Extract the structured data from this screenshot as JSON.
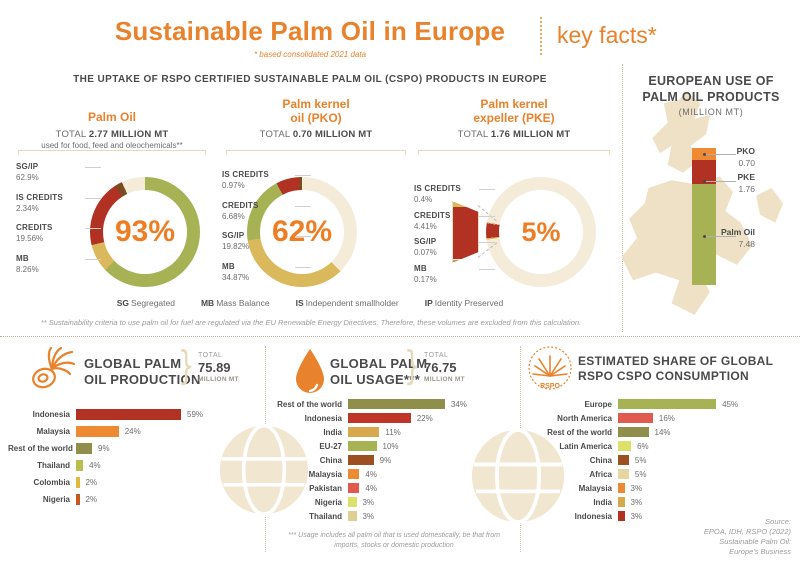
{
  "header": {
    "title": "Sustainable Palm Oil in Europe",
    "key_facts": "key facts*",
    "subtitle": "* based consolidated 2021 data"
  },
  "uptake_heading": "THE UPTAKE OF RSPO CERTIFIED SUSTAINABLE PALM OIL (CSPO) PRODUCTS IN EUROPE",
  "legend": [
    {
      "abbr": "SG",
      "label": "Segregated"
    },
    {
      "abbr": "MB",
      "label": "Mass Balance"
    },
    {
      "abbr": "IS",
      "label": "Independent smallholder"
    },
    {
      "abbr": "IP",
      "label": "Identity Preserved"
    }
  ],
  "footnote_fuel": "** Sustainability criteria to use palm oil for fuel are regulated via the EU Renewable Energy Directives. Therefore, these volumes are excluded from this calculation.",
  "footnote_usage": "*** Usage includes all palm oil that is used domestically, be that from imports, stocks or domestic production",
  "source_lines": [
    "Source:",
    "EPOA, IDH, RSPO (2022)",
    "Sustainable Palm Oil:",
    "Europe's Business"
  ],
  "colors": {
    "accent": "#e8822c",
    "green": "#a6b254",
    "red": "#b13122",
    "tan": "#dab95c",
    "brown": "#7c4a21",
    "track": "#f4ecd9"
  },
  "chart_data": [
    {
      "id": "palm_oil_uptake",
      "type": "donut",
      "title_lines": [
        "Palm Oil"
      ],
      "total_prefix": "TOTAL",
      "total_value": "2.77 MILLION MT",
      "note": "used for food, feed and oleochemicals**",
      "center_value": "93%",
      "track_color": "#f4ecd9",
      "arc_start_deg": 0,
      "segments": [
        {
          "label": "SG/IP",
          "value": "62.9%",
          "pct": 62.9,
          "color": "#a6b254"
        },
        {
          "label": "IS CREDITS",
          "value": "2.34%",
          "pct": 2.34,
          "color": "#7c4a21"
        },
        {
          "label": "CREDITS",
          "value": "19.56%",
          "pct": 19.56,
          "color": "#b13122"
        },
        {
          "label": "MB",
          "value": "8.26%",
          "pct": 8.26,
          "color": "#dab95c"
        }
      ],
      "arc_order": [
        "SG/IP",
        "MB",
        "CREDITS",
        "IS CREDITS",
        "GAP"
      ]
    },
    {
      "id": "pko_uptake",
      "type": "donut",
      "title_lines": [
        "Palm kernel",
        "oil (PKO)"
      ],
      "total_prefix": "TOTAL",
      "total_value": "0.70 MILLION MT",
      "center_value": "62%",
      "track_color": "#f4ecd9",
      "arc_start_deg": 0,
      "segments": [
        {
          "label": "IS CREDITS",
          "value": "0.97%",
          "pct": 0.97,
          "color": "#7c4a21"
        },
        {
          "label": "CREDITS",
          "value": "6.68%",
          "pct": 6.68,
          "color": "#b13122"
        },
        {
          "label": "SG/IP",
          "value": "19.82%",
          "pct": 19.82,
          "color": "#a6b254"
        },
        {
          "label": "MB",
          "value": "34.87%",
          "pct": 34.87,
          "color": "#dab95c"
        }
      ],
      "arc_order": [
        "GAP",
        "MB",
        "SG/IP",
        "CREDITS",
        "IS CREDITS"
      ]
    },
    {
      "id": "pke_uptake",
      "type": "donut",
      "title_lines": [
        "Palm kernel",
        "expeller (PKE)"
      ],
      "total_prefix": "TOTAL",
      "total_value": "1.76 MILLION MT",
      "center_value": "5%",
      "track_color": "#f4ecd9",
      "arc_start_deg": 262,
      "segments": [
        {
          "label": "IS CREDITS",
          "value": "0.4%",
          "pct": 0.4,
          "color": "#dab95c"
        },
        {
          "label": "CREDITS",
          "value": "4.41%",
          "pct": 4.41,
          "color": "#b13122"
        },
        {
          "label": "SG/IP",
          "value": "0.07%",
          "pct": 0.07,
          "color": "#f0e8d5"
        },
        {
          "label": "MB",
          "value": "0.17%",
          "pct": 0.17,
          "color": "#c9955a"
        }
      ],
      "arc_order": [
        "IS CREDITS",
        "CREDITS",
        "SG/IP",
        "MB",
        "GAP"
      ]
    },
    {
      "id": "european_use",
      "type": "stacked_bar",
      "title_lines": [
        "EUROPEAN USE OF",
        "PALM OIL PRODUCTS"
      ],
      "subtitle": "(MILLION MT)",
      "segments": [
        {
          "label": "PKO",
          "value": "0.70",
          "num": 0.7,
          "color": "#ee8a33"
        },
        {
          "label": "PKE",
          "value": "1.76",
          "num": 1.76,
          "color": "#b13122"
        },
        {
          "label": "Palm Oil",
          "value": "7.48",
          "num": 7.48,
          "color": "#a6b254"
        }
      ]
    },
    {
      "id": "global_production",
      "type": "bar",
      "title_lines": [
        "GLOBAL PALM",
        "OIL PRODUCTION"
      ],
      "total_prefix": "TOTAL",
      "total_value": "75.89",
      "total_unit": "MILLION MT",
      "categories": [
        "Indonesia",
        "Malaysia",
        "Rest of the world",
        "Thailand",
        "Colombia",
        "Nigeria"
      ],
      "values": [
        59,
        24,
        9,
        4,
        2,
        2
      ],
      "value_labels": [
        "59%",
        "24%",
        "9%",
        "4%",
        "2%",
        "2%"
      ],
      "colors": [
        "#b13122",
        "#ee8a33",
        "#8f8f4b",
        "#b7bf4e",
        "#e0b93e",
        "#c45a22"
      ]
    },
    {
      "id": "global_usage",
      "type": "bar",
      "title_lines": [
        "GLOBAL PALM",
        "OIL USAGE***"
      ],
      "total_prefix": "TOTAL",
      "total_value": "76.75",
      "total_unit": "MILLION MT",
      "categories": [
        "Rest of the world",
        "Indonesia",
        "India",
        "EU-27",
        "China",
        "Malaysia",
        "Pakistan",
        "Nigeria",
        "Thailand"
      ],
      "values": [
        34,
        22,
        11,
        10,
        9,
        4,
        4,
        3,
        3
      ],
      "value_labels": [
        "34%",
        "22%",
        "11%",
        "10%",
        "9%",
        "4%",
        "4%",
        "3%",
        "3%"
      ],
      "colors": [
        "#8f8f4b",
        "#bf3527",
        "#d8a94c",
        "#a6b254",
        "#9c4f21",
        "#ee8a33",
        "#e05a4e",
        "#dde06a",
        "#decf93"
      ]
    },
    {
      "id": "rspo_cspo_consumption",
      "type": "bar",
      "title_lines": [
        "ESTIMATED SHARE OF GLOBAL",
        "RSPO CSPO CONSUMPTION"
      ],
      "categories": [
        "Europe",
        "North America",
        "Rest of the world",
        "Latin America",
        "China",
        "Africa",
        "Malaysia",
        "India",
        "Indonesia"
      ],
      "values": [
        45,
        16,
        14,
        6,
        5,
        5,
        3,
        3,
        3
      ],
      "value_labels": [
        "45%",
        "16%",
        "14%",
        "6%",
        "5%",
        "5%",
        "3%",
        "3%",
        "3%"
      ],
      "colors": [
        "#a6b254",
        "#e05a4e",
        "#8f8f4b",
        "#dde06a",
        "#9c4f21",
        "#e6d5a0",
        "#ee8a33",
        "#d8a94c",
        "#b13122"
      ]
    }
  ]
}
